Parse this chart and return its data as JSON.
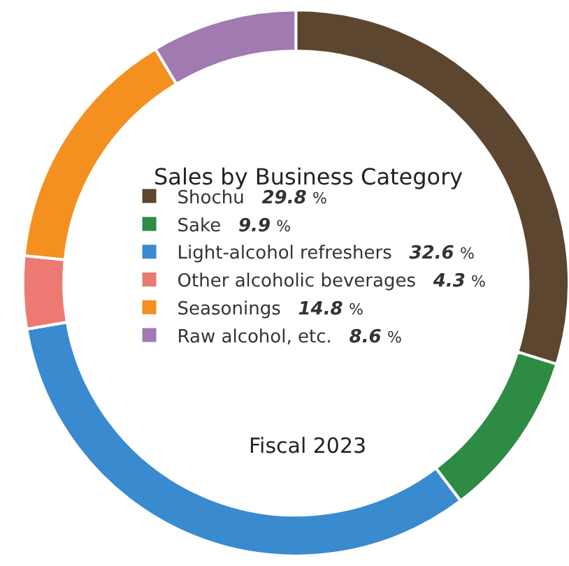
{
  "chart_data": {
    "type": "donut",
    "title": "Sales by Business Category",
    "subtitle": "Fiscal 2023",
    "categories": [
      "Shochu",
      "Sake",
      "Light-alcohol refreshers",
      "Other alcoholic beverages",
      "Seasonings",
      "Raw alcohol, etc."
    ],
    "values": [
      29.8,
      9.9,
      32.6,
      4.3,
      14.8,
      8.6
    ],
    "colors": [
      "#5c4630",
      "#2e8b44",
      "#3a8ad0",
      "#ec7a72",
      "#f39020",
      "#a07ab0"
    ],
    "value_labels": [
      "29.8 %",
      "9.9 %",
      "32.6 %",
      "4.3 %",
      "14.8 %",
      "8.6 %"
    ],
    "legend": "center"
  }
}
